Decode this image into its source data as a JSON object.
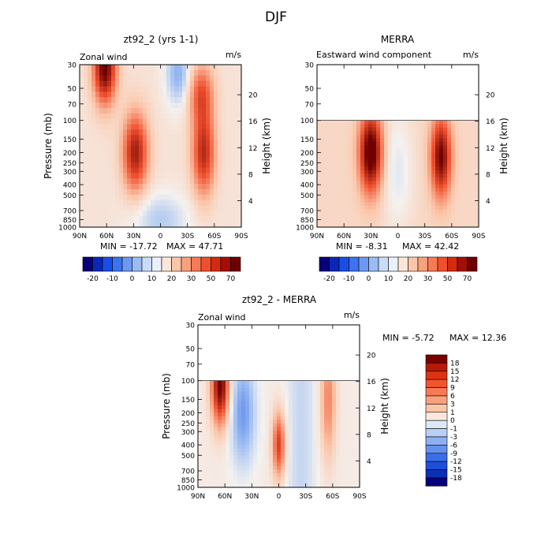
{
  "figure": {
    "title": "DJF"
  },
  "axes": {
    "pressure_label": "Pressure (mb)",
    "height_label": "Height (km)",
    "pressure_ticks": [
      "30",
      "50",
      "70",
      "100",
      "150",
      "200",
      "250",
      "300",
      "400",
      "500",
      "700",
      "850",
      "1000"
    ],
    "height_ticks": [
      "4",
      "8",
      "12",
      "16",
      "20"
    ],
    "lat_ticks": [
      "90N",
      "60N",
      "30N",
      "0",
      "30S",
      "60S",
      "90S"
    ]
  },
  "colorbar": {
    "levels": [
      "-20",
      "-10",
      "0",
      "10",
      "20",
      "30",
      "50",
      "70"
    ],
    "colors": [
      "#08007a",
      "#0a28b8",
      "#1a4de6",
      "#3b73f0",
      "#6b98f2",
      "#9bbcf2",
      "#c8dcf7",
      "#e8f0fb",
      "#fbe6d9",
      "#fbc5a8",
      "#f9a07d",
      "#f77a55",
      "#f04f2d",
      "#d22b12",
      "#a30f06",
      "#6e0000"
    ]
  },
  "diff_colorbar": {
    "levels": [
      "18",
      "15",
      "12",
      "9",
      "6",
      "3",
      "1",
      "0",
      "-1",
      "-3",
      "-6",
      "-9",
      "-12",
      "-15",
      "-18"
    ],
    "colors": [
      "#7a0000",
      "#b41a08",
      "#dc3314",
      "#f0552e",
      "#f77a55",
      "#f9a07d",
      "#fbc5a8",
      "#fbe8dd",
      "#dce8f8",
      "#b8d0f5",
      "#8fb0f0",
      "#6591ee",
      "#3b6ee6",
      "#1f4fd8",
      "#0a2fb5",
      "#08007a"
    ]
  },
  "chart_data": [
    {
      "type": "heatmap",
      "title": "zt92_2 (yrs 1-1)",
      "subtitle": "Zonal wind",
      "units": "m/s",
      "xlabel": "",
      "ylabel": "Pressure (mb)",
      "y2label": "Height (km)",
      "min_text": "MIN = -17.72",
      "max_text": "MAX = 47.71",
      "min": -17.72,
      "max": 47.71,
      "xlim": [
        "90N",
        "90S"
      ],
      "ylim": [
        1000,
        30
      ],
      "y_scale": "log",
      "data_top_mb": 30,
      "features": [
        {
          "lat": 62,
          "p": 32,
          "value": 45
        },
        {
          "lat": 28,
          "p": 200,
          "value": 36
        },
        {
          "lat": -48,
          "p": 200,
          "value": 33
        },
        {
          "lat": -45,
          "p": 55,
          "value": 23
        },
        {
          "lat": -20,
          "p": 36,
          "value": -17.7
        },
        {
          "lat": 0,
          "p": 850,
          "value": -12
        }
      ]
    },
    {
      "type": "heatmap",
      "title": "MERRA",
      "subtitle": "Eastward wind component",
      "units": "m/s",
      "xlabel": "",
      "ylabel": "",
      "y2label": "Height (km)",
      "min_text": "MIN = -8.31",
      "max_text": "MAX = 42.42",
      "min": -8.31,
      "max": 42.42,
      "xlim": [
        "90N",
        "90S"
      ],
      "ylim": [
        1000,
        30
      ],
      "y_scale": "log",
      "data_top_mb": 100,
      "features": [
        {
          "lat": 30,
          "p": 200,
          "value": 42
        },
        {
          "lat": -48,
          "p": 220,
          "value": 36
        },
        {
          "lat": 0,
          "p": 300,
          "value": -8
        }
      ]
    },
    {
      "type": "heatmap",
      "title": "zt92_2 - MERRA",
      "subtitle": "Zonal wind",
      "units": "m/s",
      "xlabel": "",
      "ylabel": "Pressure (mb)",
      "y2label": "Height (km)",
      "min_text": "MIN = -5.72",
      "max_text": "MAX = 12.36",
      "min": -5.72,
      "max": 12.36,
      "xlim": [
        "90N",
        "90S"
      ],
      "ylim": [
        1000,
        30
      ],
      "y_scale": "log",
      "data_top_mb": 100,
      "features": [
        {
          "lat": 65,
          "p": 110,
          "value": 12
        },
        {
          "lat": 0,
          "p": 400,
          "value": 8
        },
        {
          "lat": -55,
          "p": 150,
          "value": 5
        },
        {
          "lat": 40,
          "p": 200,
          "value": -5
        }
      ]
    }
  ]
}
